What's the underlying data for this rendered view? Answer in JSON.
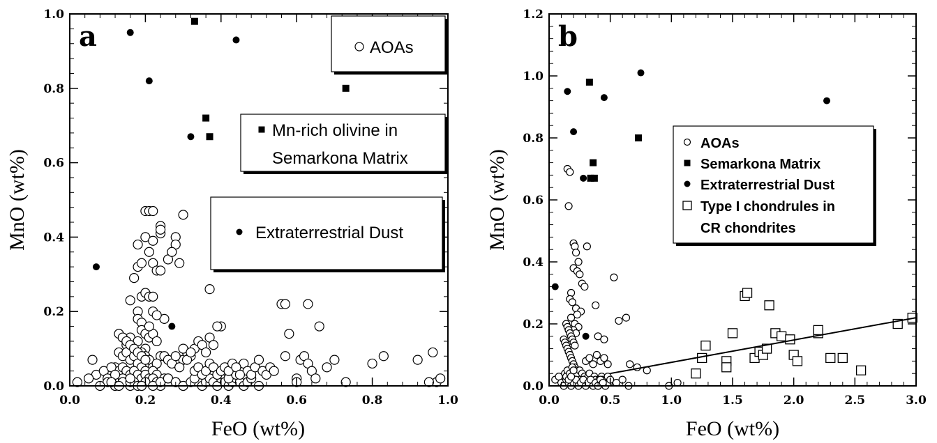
{
  "chart_data": [
    {
      "type": "scatter",
      "panel_label": "a",
      "xlabel": "FeO (wt%)",
      "ylabel": "MnO (wt%)",
      "xlim": [
        0,
        1.0
      ],
      "ylim": [
        0,
        1.0
      ],
      "xticks": [
        "0.0",
        "0.2",
        "0.4",
        "0.6",
        "0.8",
        "1.0"
      ],
      "yticks": [
        "0.0",
        "0.2",
        "0.4",
        "0.6",
        "0.8",
        "1.0"
      ],
      "grid": false,
      "legend": [
        "AOAs",
        "Mn-rich olivine in",
        "Semarkona Matrix",
        "Extraterrestrial Dust"
      ],
      "series": [
        {
          "name": "AOAs",
          "marker": "open-circle",
          "x": [
            0.2,
            0.24,
            0.21,
            0.22,
            0.2,
            0.22,
            0.18,
            0.21,
            0.24,
            0.24,
            0.28,
            0.3,
            0.28,
            0.17,
            0.18,
            0.19,
            0.22,
            0.26,
            0.23,
            0.24,
            0.19,
            0.2,
            0.21,
            0.22,
            0.16,
            0.18,
            0.25,
            0.27,
            0.29,
            0.37,
            0.22,
            0.23,
            0.18,
            0.19,
            0.4,
            0.19,
            0.2,
            0.21,
            0.22,
            0.23,
            0.21,
            0.14,
            0.16,
            0.18,
            0.15,
            0.16,
            0.2,
            0.13,
            0.14,
            0.15,
            0.16,
            0.17,
            0.17,
            0.19,
            0.2,
            0.21,
            0.24,
            0.26,
            0.22,
            0.23,
            0.18,
            0.19,
            0.2,
            0.12,
            0.13,
            0.14,
            0.15,
            0.16,
            0.17,
            0.18,
            0.19,
            0.2,
            0.21,
            0.22,
            0.23,
            0.25,
            0.13,
            0.14,
            0.15,
            0.16,
            0.17,
            0.19,
            0.21,
            0.22,
            0.23,
            0.24,
            0.26,
            0.28,
            0.3,
            0.12,
            0.14,
            0.16,
            0.18,
            0.2,
            0.22,
            0.24,
            0.26,
            0.28,
            0.3,
            0.32,
            0.33,
            0.35,
            0.36,
            0.37,
            0.38,
            0.39,
            0.4,
            0.41,
            0.42,
            0.43,
            0.44,
            0.45,
            0.46,
            0.47,
            0.48,
            0.5,
            0.33,
            0.34,
            0.35,
            0.36,
            0.37,
            0.38,
            0.39,
            0.4,
            0.41,
            0.42,
            0.43,
            0.44,
            0.45,
            0.46,
            0.47,
            0.48,
            0.49,
            0.5,
            0.51,
            0.52,
            0.53,
            0.54,
            0.3,
            0.31,
            0.32,
            0.33,
            0.34,
            0.35,
            0.36,
            0.37,
            0.38,
            0.39,
            0.25,
            0.26,
            0.27,
            0.28,
            0.29,
            0.3,
            0.31,
            0.32,
            0.06,
            0.07,
            0.09,
            0.1,
            0.11,
            0.1,
            0.12,
            0.12,
            0.13,
            0.14,
            0.15,
            0.16,
            0.17,
            0.18,
            0.19,
            0.2,
            0.02,
            0.05,
            0.08,
            0.11,
            0.13,
            0.16,
            0.19,
            0.56,
            0.57,
            0.58,
            0.63,
            0.66,
            0.57,
            0.6,
            0.61,
            0.62,
            0.63,
            0.64,
            0.68,
            0.7,
            0.73,
            0.8,
            0.83,
            0.92,
            0.96,
            0.97,
            0.98,
            0.95,
            0.6,
            0.65,
            0.42,
            0.43,
            0.44,
            0.45
          ],
          "y": [
            0.47,
            0.41,
            0.47,
            0.47,
            0.4,
            0.39,
            0.38,
            0.36,
            0.43,
            0.42,
            0.4,
            0.46,
            0.38,
            0.29,
            0.32,
            0.33,
            0.33,
            0.34,
            0.31,
            0.31,
            0.24,
            0.25,
            0.24,
            0.24,
            0.23,
            0.2,
            0.18,
            0.36,
            0.33,
            0.26,
            0.2,
            0.19,
            0.18,
            0.17,
            0.16,
            0.15,
            0.14,
            0.13,
            0.14,
            0.12,
            0.16,
            0.13,
            0.13,
            0.12,
            0.11,
            0.1,
            0.1,
            0.09,
            0.08,
            0.09,
            0.07,
            0.08,
            0.1,
            0.09,
            0.08,
            0.07,
            0.08,
            0.07,
            0.05,
            0.06,
            0.06,
            0.05,
            0.04,
            0.05,
            0.04,
            0.05,
            0.04,
            0.03,
            0.04,
            0.03,
            0.02,
            0.03,
            0.02,
            0.04,
            0.03,
            0.02,
            0.01,
            0.02,
            0.01,
            0.0,
            0.01,
            0.0,
            0.01,
            0.02,
            0.01,
            0.0,
            0.02,
            0.01,
            0.0,
            0.0,
            0.01,
            0.01,
            0.0,
            0.01,
            0.0,
            0.01,
            0.02,
            0.01,
            0.0,
            0.01,
            0.02,
            0.0,
            0.01,
            0.02,
            0.01,
            0.0,
            0.02,
            0.01,
            0.0,
            0.01,
            0.02,
            0.01,
            0.0,
            0.01,
            0.02,
            0.0,
            0.04,
            0.05,
            0.03,
            0.04,
            0.06,
            0.05,
            0.03,
            0.04,
            0.05,
            0.02,
            0.04,
            0.03,
            0.05,
            0.06,
            0.04,
            0.03,
            0.05,
            0.07,
            0.04,
            0.03,
            0.05,
            0.04,
            0.07,
            0.09,
            0.08,
            0.1,
            0.12,
            0.11,
            0.09,
            0.13,
            0.11,
            0.16,
            0.08,
            0.07,
            0.06,
            0.08,
            0.05,
            0.1,
            0.07,
            0.09,
            0.07,
            0.03,
            0.04,
            0.02,
            0.05,
            0.01,
            0.03,
            0.0,
            0.14,
            0.13,
            0.12,
            0.11,
            0.1,
            0.09,
            0.08,
            0.07,
            0.01,
            0.02,
            0.0,
            0.01,
            0.0,
            0.02,
            0.0,
            0.22,
            0.22,
            0.14,
            0.22,
            0.16,
            0.08,
            0.02,
            0.07,
            0.08,
            0.06,
            0.04,
            0.05,
            0.07,
            0.01,
            0.06,
            0.08,
            0.07,
            0.09,
            0.01,
            0.02,
            0.01,
            0.01,
            0.02,
            0.04,
            0.06,
            0.05,
            0.03
          ]
        },
        {
          "name": "Mn-rich olivine in Semarkona Matrix",
          "marker": "filled-square",
          "x": [
            0.33,
            0.36,
            0.37,
            0.73
          ],
          "y": [
            0.98,
            0.72,
            0.67,
            0.8
          ]
        },
        {
          "name": "Extraterrestrial Dust",
          "marker": "filled-circle",
          "x": [
            0.16,
            0.21,
            0.44,
            0.32,
            0.07,
            0.27
          ],
          "y": [
            0.95,
            0.82,
            0.93,
            0.67,
            0.32,
            0.16
          ]
        }
      ]
    },
    {
      "type": "scatter",
      "panel_label": "b",
      "xlabel": "FeO (wt%)",
      "ylabel": "MnO (wt%)",
      "xlim": [
        0,
        3.0
      ],
      "ylim": [
        0,
        1.2
      ],
      "xticks": [
        "0.0",
        "0.5",
        "1.0",
        "1.5",
        "2.0",
        "2.5",
        "3.0"
      ],
      "yticks": [
        "0.0",
        "0.2",
        "0.4",
        "0.6",
        "0.8",
        "1.0",
        "1.2"
      ],
      "grid": false,
      "legend": [
        "AOAs",
        "Semarkona Matrix",
        "Extraterrestrial Dust",
        "Type I chondrules in",
        "CR chondrites"
      ],
      "series": [
        {
          "name": "AOAs",
          "marker": "small-open-circle",
          "x": [
            0.15,
            0.17,
            0.16,
            0.2,
            0.21,
            0.22,
            0.24,
            0.2,
            0.23,
            0.25,
            0.31,
            0.27,
            0.29,
            0.18,
            0.17,
            0.19,
            0.22,
            0.26,
            0.23,
            0.18,
            0.21,
            0.24,
            0.38,
            0.2,
            0.22,
            0.4,
            0.45,
            0.53,
            0.57,
            0.63,
            0.66,
            0.72,
            0.8,
            0.98,
            1.05,
            0.12,
            0.13,
            0.14,
            0.15,
            0.16,
            0.17,
            0.18,
            0.19,
            0.2,
            0.21,
            0.22,
            0.23,
            0.25,
            0.27,
            0.29,
            0.3,
            0.32,
            0.33,
            0.35,
            0.36,
            0.37,
            0.38,
            0.39,
            0.4,
            0.41,
            0.42,
            0.43,
            0.44,
            0.45,
            0.46,
            0.47,
            0.48,
            0.49,
            0.5,
            0.3,
            0.33,
            0.36,
            0.39,
            0.42,
            0.45,
            0.48,
            0.05,
            0.08,
            0.1,
            0.12,
            0.14,
            0.16,
            0.18,
            0.2,
            0.22,
            0.24,
            0.26,
            0.28,
            0.3,
            0.32,
            0.34,
            0.36,
            0.38,
            0.4,
            0.42,
            0.44,
            0.14,
            0.15,
            0.16,
            0.17,
            0.18,
            0.19,
            0.2,
            0.21,
            0.13,
            0.14,
            0.15,
            0.16,
            0.17,
            0.18,
            0.19,
            0.2,
            0.55,
            0.6,
            0.65
          ],
          "y": [
            0.7,
            0.69,
            0.58,
            0.46,
            0.45,
            0.43,
            0.4,
            0.38,
            0.37,
            0.36,
            0.45,
            0.33,
            0.32,
            0.3,
            0.28,
            0.27,
            0.25,
            0.24,
            0.23,
            0.22,
            0.2,
            0.19,
            0.26,
            0.18,
            0.17,
            0.16,
            0.15,
            0.35,
            0.21,
            0.22,
            0.07,
            0.06,
            0.05,
            0.0,
            0.01,
            0.15,
            0.14,
            0.13,
            0.12,
            0.11,
            0.1,
            0.09,
            0.08,
            0.07,
            0.06,
            0.05,
            0.04,
            0.05,
            0.04,
            0.03,
            0.02,
            0.03,
            0.04,
            0.02,
            0.01,
            0.03,
            0.02,
            0.01,
            0.0,
            0.02,
            0.01,
            0.03,
            0.02,
            0.01,
            0.0,
            0.02,
            0.03,
            0.01,
            0.02,
            0.08,
            0.09,
            0.07,
            0.1,
            0.08,
            0.09,
            0.07,
            0.02,
            0.03,
            0.01,
            0.0,
            0.02,
            0.01,
            0.0,
            0.01,
            0.02,
            0.0,
            0.01,
            0.02,
            0.0,
            0.01,
            0.02,
            0.0,
            0.01,
            0.0,
            0.02,
            0.01,
            0.2,
            0.19,
            0.18,
            0.17,
            0.16,
            0.15,
            0.14,
            0.13,
            0.04,
            0.03,
            0.05,
            0.02,
            0.04,
            0.03,
            0.06,
            0.05,
            0.01,
            0.02,
            0.0
          ]
        },
        {
          "name": "Semarkona Matrix",
          "marker": "filled-square",
          "x": [
            0.33,
            0.36,
            0.37,
            0.73,
            0.34
          ],
          "y": [
            0.98,
            0.72,
            0.67,
            0.8,
            0.67
          ]
        },
        {
          "name": "Extraterrestrial Dust",
          "marker": "filled-circle",
          "x": [
            0.15,
            0.2,
            0.45,
            0.75,
            2.27,
            0.05,
            0.3,
            0.28
          ],
          "y": [
            0.95,
            0.82,
            0.93,
            1.01,
            0.92,
            0.32,
            0.16,
            0.67
          ]
        },
        {
          "name": "Type I chondrules in CR chondrites",
          "marker": "open-square",
          "x": [
            1.2,
            1.25,
            1.28,
            1.45,
            1.45,
            1.5,
            1.6,
            1.62,
            1.68,
            1.72,
            1.75,
            1.78,
            1.8,
            1.85,
            1.9,
            1.97,
            2.0,
            2.03,
            2.2,
            2.2,
            2.3,
            2.4,
            2.55,
            2.85,
            2.97
          ],
          "y": [
            0.04,
            0.09,
            0.13,
            0.08,
            0.06,
            0.17,
            0.29,
            0.3,
            0.09,
            0.11,
            0.1,
            0.12,
            0.26,
            0.17,
            0.16,
            0.15,
            0.1,
            0.08,
            0.17,
            0.18,
            0.09,
            0.09,
            0.05,
            0.2,
            0.22
          ]
        }
      ],
      "trendline": {
        "x": [
          0.5,
          3.0
        ],
        "y": [
          0.04,
          0.22
        ]
      }
    }
  ]
}
